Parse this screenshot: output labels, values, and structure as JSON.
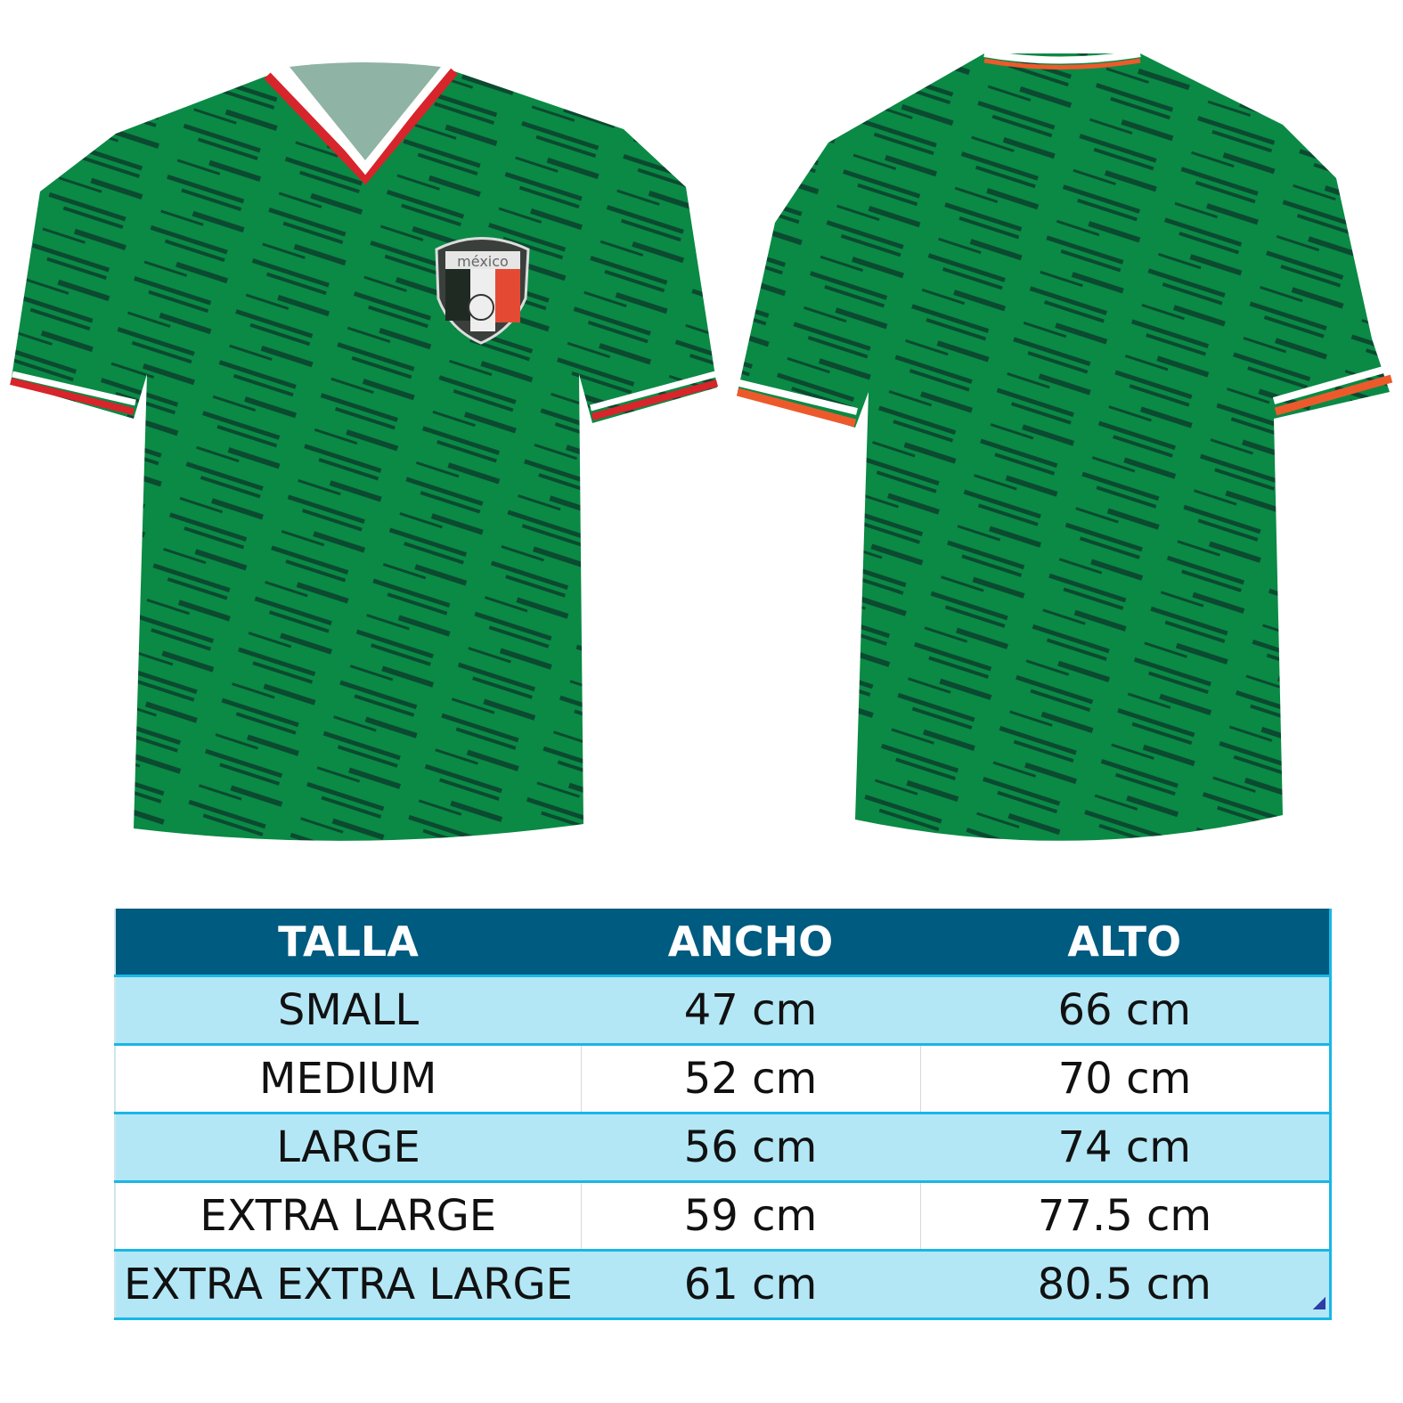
{
  "product": {
    "crest_text": "méxico",
    "colors": {
      "jersey_green": "#0a8a45",
      "stripe_dark": "#0b4a30",
      "trim_red": "#d8242b",
      "trim_orange": "#ec5a2c",
      "trim_white": "#ffffff",
      "trim_green": "#1c5a35"
    }
  },
  "size_table": {
    "headers": [
      "TALLA",
      "ANCHO",
      "ALTO"
    ],
    "rows": [
      [
        "SMALL",
        "47 cm",
        "66 cm"
      ],
      [
        "MEDIUM",
        "52 cm",
        "70 cm"
      ],
      [
        "LARGE",
        "56 cm",
        "74 cm"
      ],
      [
        "EXTRA LARGE",
        "59 cm",
        "77.5 cm"
      ],
      [
        "EXTRA EXTRA LARGE",
        "61 cm",
        "80.5 cm"
      ]
    ],
    "colors": {
      "header_bg": "#005b80",
      "alt_row_bg": "#b3e7f6",
      "border": "#1ab6e6"
    }
  }
}
